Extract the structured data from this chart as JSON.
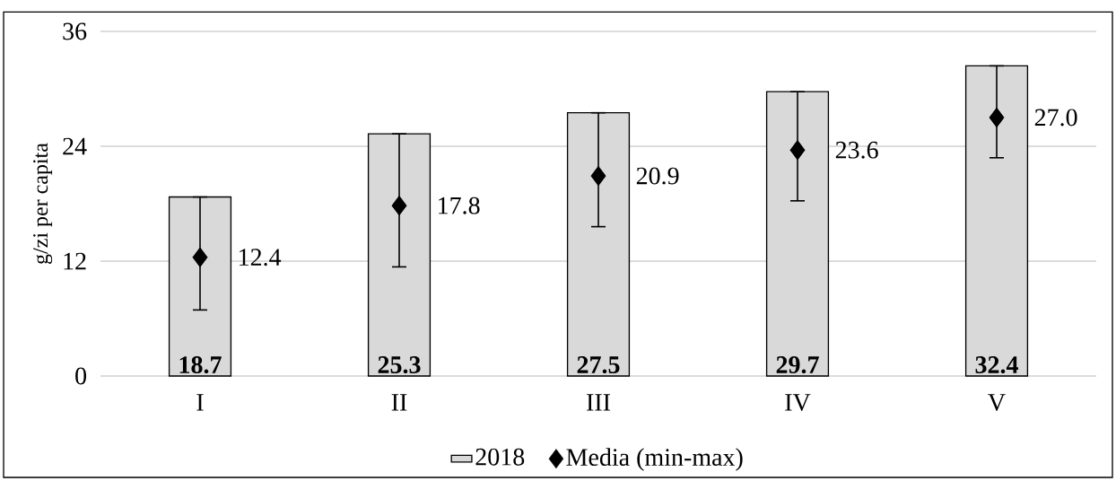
{
  "chart_data": {
    "type": "bar",
    "ylabel": "g/zi per capita",
    "categories": [
      "I",
      "II",
      "III",
      "IV",
      "V"
    ],
    "series": [
      {
        "name": "2018",
        "color": "#d9d9d9",
        "values": [
          18.7,
          25.3,
          27.5,
          29.7,
          32.4
        ],
        "value_labels": [
          "18.7",
          "25.3",
          "27.5",
          "29.7",
          "32.4"
        ]
      },
      {
        "name": "Media (min-max)",
        "type": "scatter",
        "color": "#000000",
        "marker": "diamond",
        "values": [
          12.4,
          17.8,
          20.9,
          23.6,
          27.0
        ],
        "value_labels": [
          "12.4",
          "17.8",
          "20.9",
          "23.6",
          "27.0"
        ],
        "errors": [
          [
            6.9,
            18.7
          ],
          [
            11.4,
            25.3
          ],
          [
            15.6,
            27.5
          ],
          [
            18.3,
            29.7
          ],
          [
            22.8,
            32.4
          ]
        ]
      }
    ],
    "ylim": [
      0,
      36
    ],
    "yticks": [
      0,
      12,
      24,
      36
    ],
    "grid": "y",
    "legend": "bottom"
  }
}
